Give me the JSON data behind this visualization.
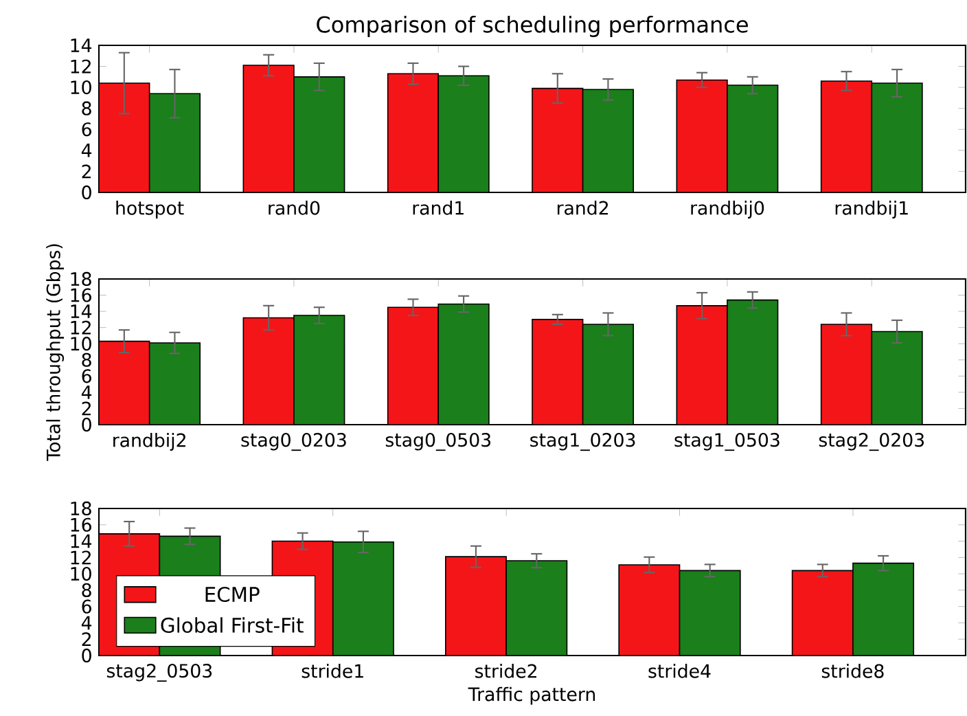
{
  "chart_data": [
    {
      "type": "bar",
      "title": "Comparison of scheduling performance",
      "categories": [
        "hotspot",
        "rand0",
        "rand1",
        "rand2",
        "randbij0",
        "randbij1"
      ],
      "ylim": [
        0,
        14
      ],
      "yticks": [
        0,
        2,
        4,
        6,
        8,
        10,
        12,
        14
      ],
      "series": [
        {
          "color": "#f41518",
          "values": [
            10.4,
            12.1,
            11.3,
            9.9,
            10.7,
            10.6
          ],
          "errors": [
            2.9,
            1.0,
            1.0,
            1.4,
            0.7,
            0.9
          ]
        },
        {
          "color": "#1b7f1b",
          "values": [
            9.4,
            11.0,
            11.1,
            9.8,
            10.2,
            10.4
          ],
          "errors": [
            2.3,
            1.3,
            0.9,
            1.0,
            0.8,
            1.3
          ]
        }
      ]
    },
    {
      "type": "bar",
      "ylabel": "Total throughput (Gbps)",
      "categories": [
        "randbij2",
        "stag0_0203",
        "stag0_0503",
        "stag1_0203",
        "stag1_0503",
        "stag2_0203"
      ],
      "ylim": [
        0,
        18
      ],
      "yticks": [
        0,
        2,
        4,
        6,
        8,
        10,
        12,
        14,
        16,
        18
      ],
      "series": [
        {
          "color": "#f41518",
          "values": [
            10.3,
            13.2,
            14.5,
            13.0,
            14.7,
            12.4
          ],
          "errors": [
            1.4,
            1.5,
            1.0,
            0.6,
            1.6,
            1.4
          ]
        },
        {
          "color": "#1b7f1b",
          "values": [
            10.1,
            13.5,
            14.9,
            12.4,
            15.4,
            11.5
          ],
          "errors": [
            1.3,
            1.0,
            1.0,
            1.4,
            1.0,
            1.4
          ]
        }
      ]
    },
    {
      "type": "bar",
      "xlabel": "Traffic pattern",
      "categories": [
        "stag2_0503",
        "stride1",
        "stride2",
        "stride4",
        "stride8"
      ],
      "ylim": [
        0,
        18
      ],
      "yticks": [
        0,
        2,
        4,
        6,
        8,
        10,
        12,
        14,
        16,
        18
      ],
      "legend": "bottom left",
      "series": [
        {
          "name": "ECMP",
          "color": "#f41518",
          "values": [
            14.9,
            14.0,
            12.1,
            11.1,
            10.4
          ],
          "errors": [
            1.5,
            1.0,
            1.3,
            0.95,
            0.75
          ]
        },
        {
          "name": "Global First-Fit",
          "color": "#1b7f1b",
          "values": [
            14.6,
            13.9,
            11.6,
            10.4,
            11.3
          ],
          "errors": [
            1.0,
            1.3,
            0.85,
            0.75,
            0.9
          ]
        }
      ]
    }
  ]
}
